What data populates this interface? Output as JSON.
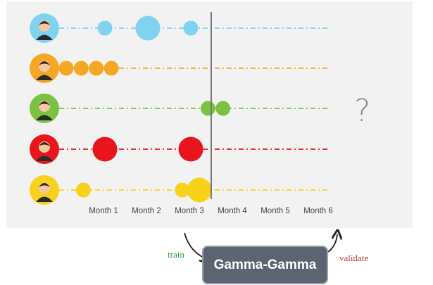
{
  "months": [
    "Month 1",
    "Month 2",
    "Month 3",
    "Month 4",
    "Month 5",
    "Month 6"
  ],
  "question_mark": "?",
  "model": {
    "label": "Gamma-Gamma"
  },
  "train_label": "train",
  "validate_label": "validate",
  "colors": {
    "customer_1": "#7fd3ef",
    "customer_2": "#f5a623",
    "customer_3": "#7cc242",
    "customer_4": "#e8161c",
    "customer_5": "#f7d11a",
    "cutoff_line": "#777777",
    "arrow": "#222222"
  },
  "customers": [
    {
      "id": "customer-1",
      "avatar": "man-red-shirt-icon",
      "color_key": "customer_1",
      "purchases": [
        {
          "month": 1.0,
          "size": "small"
        },
        {
          "month": 2.0,
          "size": "large"
        },
        {
          "month": 3.0,
          "size": "small"
        }
      ]
    },
    {
      "id": "customer-2",
      "avatar": "woman-dark-hair-icon",
      "color_key": "customer_2",
      "purchases": [
        {
          "month": 0.1,
          "size": "small"
        },
        {
          "month": 0.45,
          "size": "small"
        },
        {
          "month": 0.8,
          "size": "small"
        },
        {
          "month": 1.15,
          "size": "small"
        }
      ]
    },
    {
      "id": "customer-3",
      "avatar": "man-suit-icon",
      "color_key": "customer_3",
      "purchases": [
        {
          "month": 3.4,
          "size": "small"
        },
        {
          "month": 3.75,
          "size": "small"
        }
      ]
    },
    {
      "id": "customer-4",
      "avatar": "man-suit-red-icon",
      "color_key": "customer_4",
      "purchases": [
        {
          "month": 1.0,
          "size": "large"
        },
        {
          "month": 3.0,
          "size": "large"
        }
      ]
    },
    {
      "id": "customer-5",
      "avatar": "woman-yellow-icon",
      "color_key": "customer_5",
      "purchases": [
        {
          "month": 0.5,
          "size": "small"
        },
        {
          "month": 2.8,
          "size": "small"
        },
        {
          "month": 3.2,
          "size": "large"
        }
      ]
    }
  ],
  "cutoff_month": 4
}
